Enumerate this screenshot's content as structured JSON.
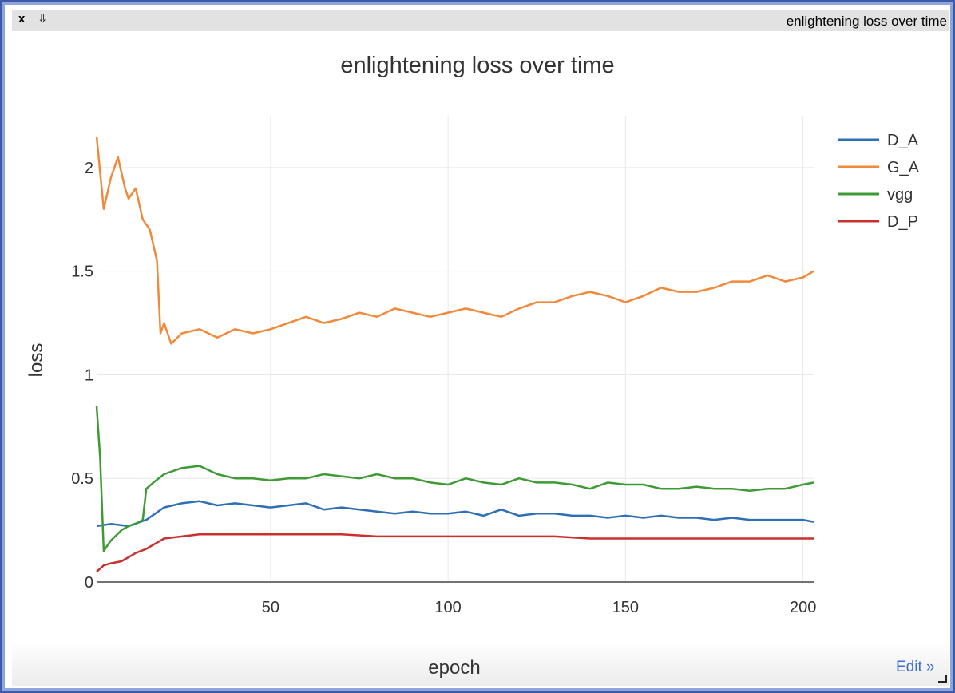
{
  "window": {
    "title": "enlightening loss over time",
    "close_label": "x",
    "pin_label": "⇩",
    "edit_label": "Edit »"
  },
  "chart_data": {
    "type": "line",
    "title": "enlightening loss over time",
    "xlabel": "epoch",
    "ylabel": "loss",
    "xlim": [
      1,
      203
    ],
    "ylim": [
      0,
      2.25
    ],
    "xticks": [
      50,
      100,
      150,
      200
    ],
    "yticks": [
      0,
      0.5,
      1,
      1.5,
      2
    ],
    "grid": true,
    "legend": "top-right",
    "series": [
      {
        "name": "D_A",
        "color": "#2e6fb5",
        "x": [
          1,
          5,
          10,
          15,
          20,
          25,
          30,
          35,
          40,
          45,
          50,
          55,
          60,
          65,
          70,
          75,
          80,
          85,
          90,
          95,
          100,
          105,
          110,
          115,
          120,
          125,
          130,
          135,
          140,
          145,
          150,
          155,
          160,
          165,
          170,
          175,
          180,
          185,
          190,
          195,
          200,
          203
        ],
        "y": [
          0.27,
          0.28,
          0.27,
          0.3,
          0.36,
          0.38,
          0.39,
          0.37,
          0.38,
          0.37,
          0.36,
          0.37,
          0.38,
          0.35,
          0.36,
          0.35,
          0.34,
          0.33,
          0.34,
          0.33,
          0.33,
          0.34,
          0.32,
          0.35,
          0.32,
          0.33,
          0.33,
          0.32,
          0.32,
          0.31,
          0.32,
          0.31,
          0.32,
          0.31,
          0.31,
          0.3,
          0.31,
          0.3,
          0.3,
          0.3,
          0.3,
          0.29
        ]
      },
      {
        "name": "G_A",
        "color": "#f2893a",
        "x": [
          1,
          3,
          5,
          7,
          9,
          10,
          12,
          14,
          16,
          18,
          19,
          20,
          22,
          25,
          30,
          35,
          40,
          45,
          50,
          55,
          60,
          65,
          70,
          75,
          80,
          85,
          90,
          95,
          100,
          105,
          110,
          115,
          120,
          125,
          130,
          135,
          140,
          145,
          150,
          155,
          160,
          165,
          170,
          175,
          180,
          185,
          190,
          195,
          200,
          203
        ],
        "y": [
          2.15,
          1.8,
          1.95,
          2.05,
          1.9,
          1.85,
          1.9,
          1.75,
          1.7,
          1.55,
          1.2,
          1.25,
          1.15,
          1.2,
          1.22,
          1.18,
          1.22,
          1.2,
          1.22,
          1.25,
          1.28,
          1.25,
          1.27,
          1.3,
          1.28,
          1.32,
          1.3,
          1.28,
          1.3,
          1.32,
          1.3,
          1.28,
          1.32,
          1.35,
          1.35,
          1.38,
          1.4,
          1.38,
          1.35,
          1.38,
          1.42,
          1.4,
          1.4,
          1.42,
          1.45,
          1.45,
          1.48,
          1.45,
          1.47,
          1.5
        ]
      },
      {
        "name": "vgg",
        "color": "#3e9a35",
        "x": [
          1,
          2,
          3,
          5,
          8,
          10,
          12,
          14,
          15,
          17,
          20,
          25,
          30,
          35,
          40,
          45,
          50,
          55,
          60,
          65,
          70,
          75,
          80,
          85,
          90,
          95,
          100,
          105,
          110,
          115,
          120,
          125,
          130,
          135,
          140,
          145,
          150,
          155,
          160,
          165,
          170,
          175,
          180,
          185,
          190,
          195,
          200,
          203
        ],
        "y": [
          0.85,
          0.6,
          0.15,
          0.2,
          0.25,
          0.27,
          0.28,
          0.3,
          0.45,
          0.48,
          0.52,
          0.55,
          0.56,
          0.52,
          0.5,
          0.5,
          0.49,
          0.5,
          0.5,
          0.52,
          0.51,
          0.5,
          0.52,
          0.5,
          0.5,
          0.48,
          0.47,
          0.5,
          0.48,
          0.47,
          0.5,
          0.48,
          0.48,
          0.47,
          0.45,
          0.48,
          0.47,
          0.47,
          0.45,
          0.45,
          0.46,
          0.45,
          0.45,
          0.44,
          0.45,
          0.45,
          0.47,
          0.48
        ]
      },
      {
        "name": "D_P",
        "color": "#c8312e",
        "x": [
          1,
          3,
          5,
          8,
          10,
          12,
          15,
          18,
          20,
          25,
          30,
          35,
          40,
          50,
          60,
          70,
          80,
          90,
          100,
          110,
          120,
          130,
          140,
          150,
          160,
          170,
          180,
          190,
          200,
          203
        ],
        "y": [
          0.05,
          0.08,
          0.09,
          0.1,
          0.12,
          0.14,
          0.16,
          0.19,
          0.21,
          0.22,
          0.23,
          0.23,
          0.23,
          0.23,
          0.23,
          0.23,
          0.22,
          0.22,
          0.22,
          0.22,
          0.22,
          0.22,
          0.21,
          0.21,
          0.21,
          0.21,
          0.21,
          0.21,
          0.21,
          0.21
        ]
      }
    ]
  }
}
